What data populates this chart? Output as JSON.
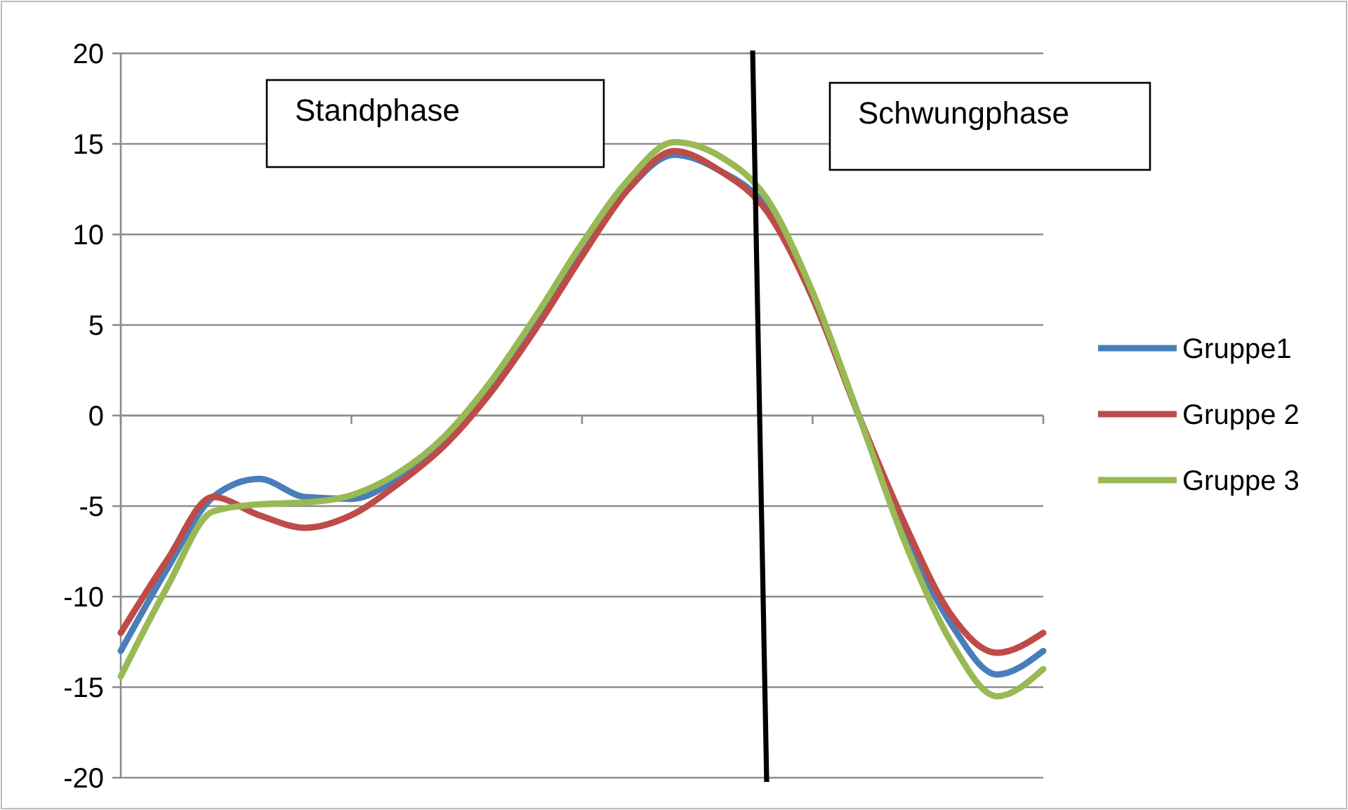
{
  "chart_data": {
    "type": "line",
    "categories": [
      null,
      null,
      null,
      null,
      null,
      null,
      null,
      null,
      null,
      null,
      null,
      null,
      null,
      null,
      null,
      null,
      null,
      null,
      null,
      null,
      null
    ],
    "series": [
      {
        "name": "Gruppe1",
        "color": "#4a7ebb",
        "values": [
          -13,
          -8.5,
          -4.5,
          -3.5,
          -4.5,
          -4.6,
          -3.5,
          -1.5,
          1.5,
          5,
          9,
          12.5,
          14.4,
          13.5,
          11.5,
          6.5,
          0,
          -6.5,
          -11.5,
          -14.3,
          -13
        ]
      },
      {
        "name": "Gruppe 2",
        "color": "#be4b48",
        "values": [
          -12,
          -8,
          -4.5,
          -5.5,
          -6.2,
          -5.5,
          -3.8,
          -1.7,
          1.2,
          4.8,
          8.8,
          12.5,
          14.6,
          13.5,
          11.3,
          6.5,
          0,
          -6,
          -11,
          -13.1,
          -12
        ]
      },
      {
        "name": "Gruppe 3",
        "color": "#98b954",
        "values": [
          -14.4,
          -9.5,
          -5.3,
          -4.9,
          -4.8,
          -4.4,
          -3.2,
          -1.2,
          1.8,
          5.5,
          9.5,
          13,
          15.1,
          14.3,
          12,
          6.8,
          0,
          -7,
          -12.5,
          -15.5,
          -14
        ]
      }
    ],
    "ylim": [
      -20,
      20
    ],
    "yticks": [
      -20,
      -15,
      -10,
      -5,
      0,
      5,
      10,
      15,
      20
    ],
    "grid": "y",
    "legend": "right",
    "marker": "none",
    "line_style": "solid",
    "annotations": [
      "Standphase",
      "Schwungphase"
    ]
  }
}
